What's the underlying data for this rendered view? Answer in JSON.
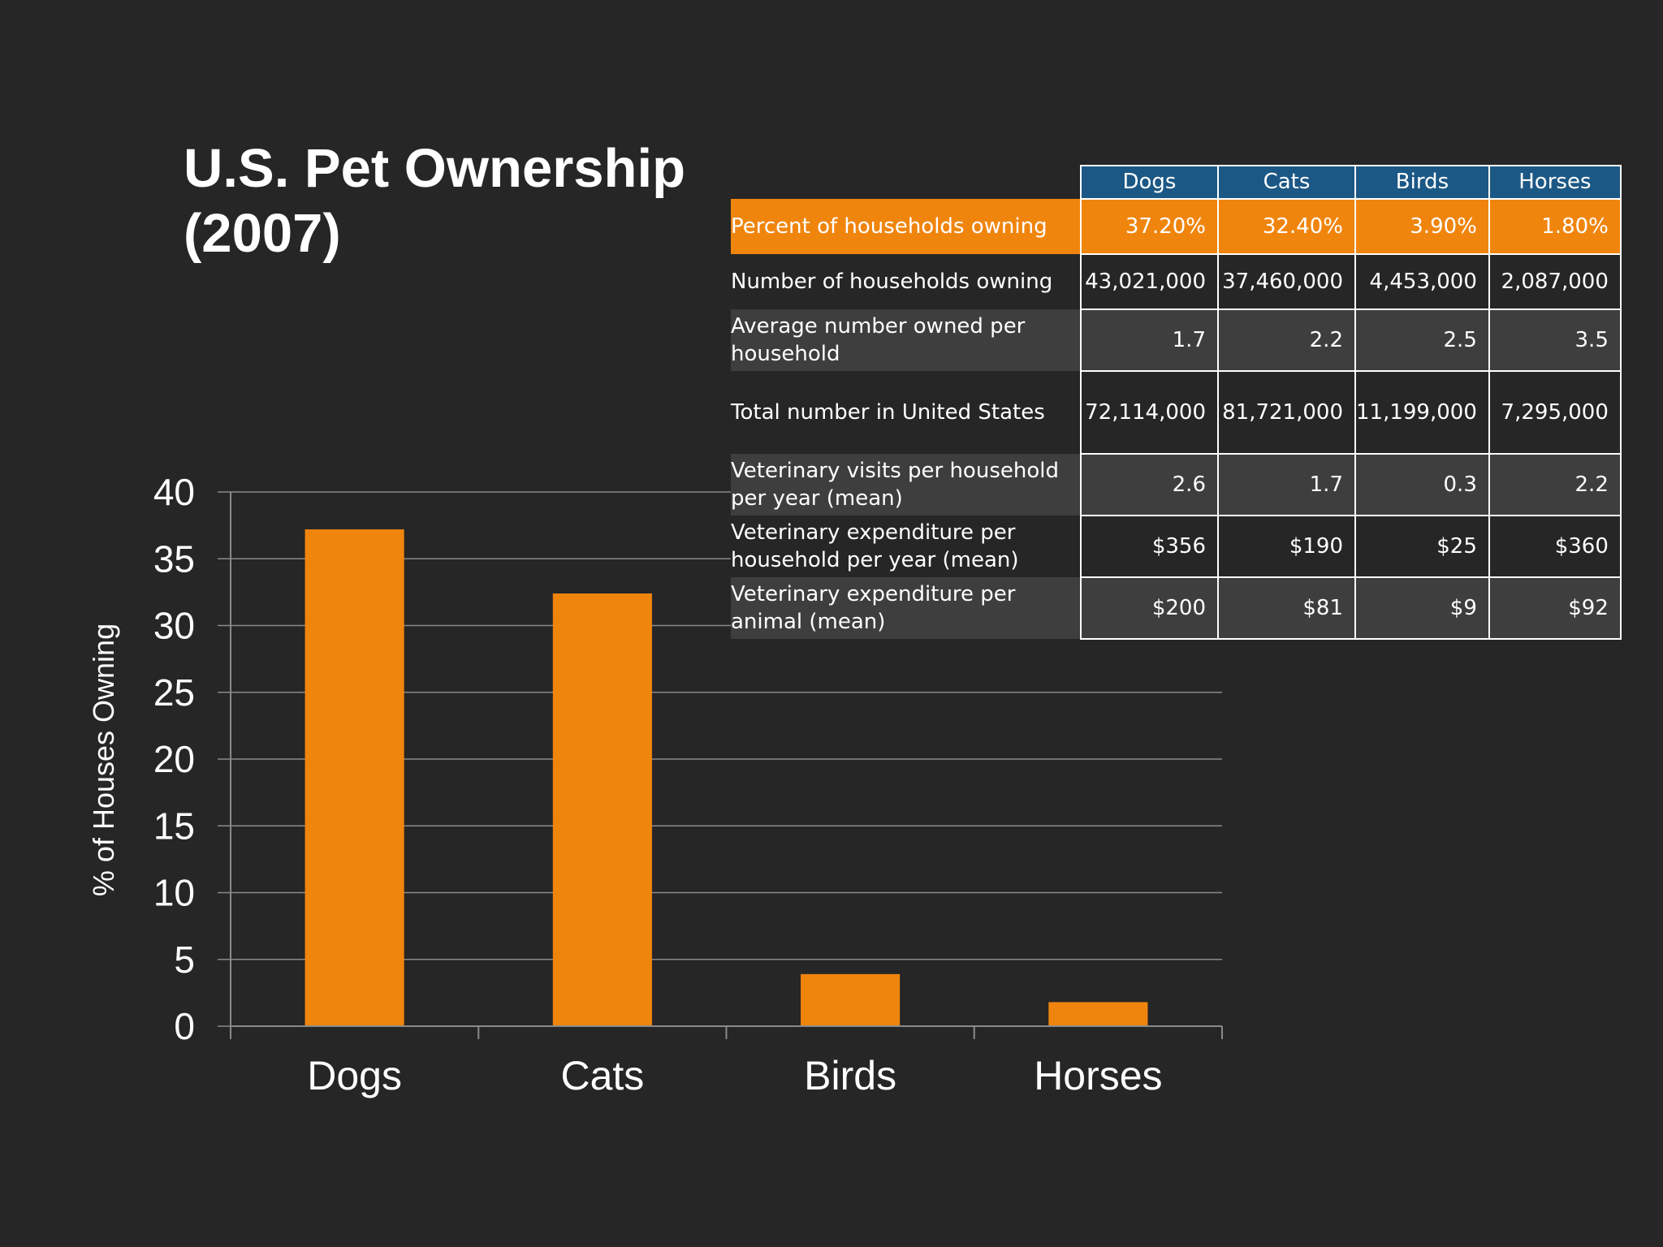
{
  "slide": {
    "title": "U.S. Pet Ownership\n(2007)"
  },
  "colors": {
    "background": "#262626",
    "bar": "#f0850e",
    "table_header": "#1c5886",
    "table_highlight": "#f0850e",
    "table_shade": "#3e3e3e",
    "gridline": "#8a8a8a"
  },
  "table": {
    "columns": [
      "Dogs",
      "Cats",
      "Birds",
      "Horses"
    ],
    "rows": [
      {
        "label": "Percent of households owning",
        "values": [
          "37.20%",
          "32.40%",
          "3.90%",
          "1.80%"
        ],
        "style": "highlight"
      },
      {
        "label": "Number of households owning",
        "values": [
          "43,021,000",
          "37,460,000",
          "4,453,000",
          "2,087,000"
        ],
        "style": "dark"
      },
      {
        "label": "Average number owned per household",
        "values": [
          "1.7",
          "2.2",
          "2.5",
          "3.5"
        ],
        "style": "shade"
      },
      {
        "label": "Total number in United States",
        "values": [
          "72,114,000",
          "81,721,000",
          "11,199,000",
          "7,295,000"
        ],
        "style": "dark"
      },
      {
        "label": "Veterinary visits per household per year (mean)",
        "values": [
          "2.6",
          "1.7",
          "0.3",
          "2.2"
        ],
        "style": "shade"
      },
      {
        "label": "Veterinary expenditure per household per year (mean)",
        "values": [
          "$356",
          "$190",
          "$25",
          "$360"
        ],
        "style": "dark"
      },
      {
        "label": "Veterinary expenditure per animal (mean)",
        "values": [
          "$200",
          "$81",
          "$9",
          "$92"
        ],
        "style": "shade"
      }
    ]
  },
  "chart_data": {
    "type": "bar",
    "title": "",
    "categories": [
      "Dogs",
      "Cats",
      "Birds",
      "Horses"
    ],
    "values": [
      37.2,
      32.4,
      3.9,
      1.8
    ],
    "xlabel": "",
    "ylabel": "% of Houses Owning",
    "ylim": [
      0,
      40
    ],
    "yticks": [
      0,
      5,
      10,
      15,
      20,
      25,
      30,
      35,
      40
    ],
    "grid": true,
    "legend": "none"
  }
}
